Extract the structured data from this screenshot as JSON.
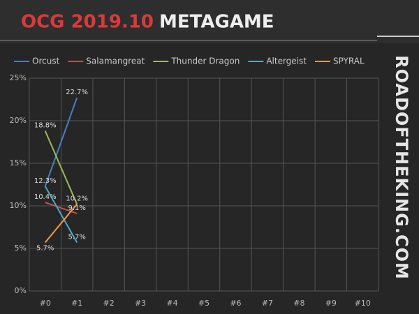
{
  "chart_data": {
    "type": "line",
    "title": "OCG 2019.10",
    "title_suffix": "METAGAME",
    "watermark": "ROADOFTHEKING.COM",
    "categories": [
      "#0",
      "#1",
      "#2",
      "#3",
      "#4",
      "#5",
      "#6",
      "#7",
      "#8",
      "#9",
      "#10"
    ],
    "series": [
      {
        "name": "Orcust",
        "color": "#4a7fc1",
        "values": [
          12.3,
          22.7,
          null,
          null,
          null,
          null,
          null,
          null,
          null,
          null,
          null
        ],
        "value_labels": [
          "12.3%",
          "22.7%",
          null,
          null,
          null,
          null,
          null,
          null,
          null,
          null,
          null
        ]
      },
      {
        "name": "Salamangreat",
        "color": "#c0504d",
        "values": [
          10.4,
          9.1,
          null,
          null,
          null,
          null,
          null,
          null,
          null,
          null,
          null
        ],
        "value_labels": [
          "10.4%",
          "9.1%",
          null,
          null,
          null,
          null,
          null,
          null,
          null,
          null,
          null
        ]
      },
      {
        "name": "Thunder Dragon",
        "color": "#9bbb59",
        "values": [
          18.8,
          10.2,
          null,
          null,
          null,
          null,
          null,
          null,
          null,
          null,
          null
        ],
        "value_labels": [
          "18.8%",
          "10.2%",
          null,
          null,
          null,
          null,
          null,
          null,
          null,
          null,
          null
        ]
      },
      {
        "name": "Altergeist",
        "color": "#4bacc6",
        "values": [
          12.3,
          5.7,
          null,
          null,
          null,
          null,
          null,
          null,
          null,
          null,
          null
        ],
        "value_labels": [
          null,
          "5.7%",
          null,
          null,
          null,
          null,
          null,
          null,
          null,
          null,
          null
        ]
      },
      {
        "name": "SPYRAL",
        "color": "#f79646",
        "values": [
          5.7,
          10.2,
          null,
          null,
          null,
          null,
          null,
          null,
          null,
          null,
          null
        ],
        "value_labels": [
          "5.7%",
          null,
          null,
          null,
          null,
          null,
          null,
          null,
          null,
          null,
          null
        ]
      }
    ],
    "ylim": [
      0,
      25
    ],
    "yticks": [
      {
        "value": 0,
        "label": "0%"
      },
      {
        "value": 5,
        "label": "5%"
      },
      {
        "value": 10,
        "label": "10%"
      },
      {
        "value": 15,
        "label": "15%"
      },
      {
        "value": 20,
        "label": "20%"
      },
      {
        "value": 25,
        "label": "25%"
      }
    ],
    "grid": true,
    "legend": "top"
  }
}
